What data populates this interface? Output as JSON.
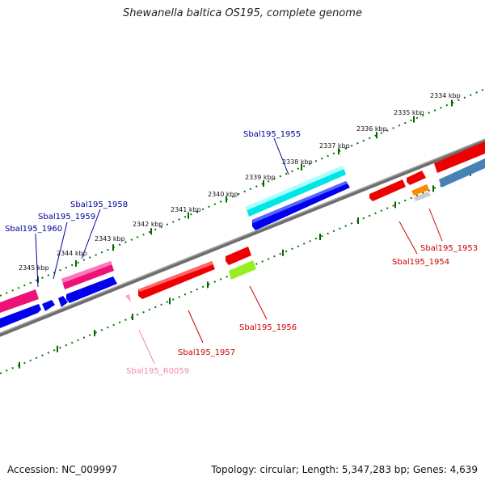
{
  "title": "Shewanella baltica OS195, complete genome",
  "accession": "Accession: NC_009997",
  "summary": "Topology: circular; Length: 5,347,283 bp; Genes: 4,639",
  "kbp_labels": [
    "2334 kbp",
    "2335 kbp",
    "2336 kbp",
    "2337 kbp",
    "2338 kbp",
    "2339 kbp",
    "2340 kbp",
    "2341 kbp",
    "2342 kbp",
    "2343 kbp",
    "2344 kbp",
    "2345 kbp"
  ],
  "genes": [
    {
      "label": "Sbal195_1955",
      "color": "#000099"
    },
    {
      "label": "Sbal195_1958",
      "color": "#000099"
    },
    {
      "label": "Sbal195_1959",
      "color": "#000099"
    },
    {
      "label": "Sbal195_1960",
      "color": "#000099"
    },
    {
      "label": "Sbal195_1953",
      "color": "#cc0000"
    },
    {
      "label": "Sbal195_1954",
      "color": "#cc0000"
    },
    {
      "label": "Sbal195_1956",
      "color": "#cc0000"
    },
    {
      "label": "Sbal195_1957",
      "color": "#cc0000"
    },
    {
      "label": "Sbal195_R0059",
      "color": "#ee88bb"
    }
  ],
  "colors": {
    "backbone": "#888888",
    "ticks": "#006600",
    "forward_blue": "#0000ee",
    "forward_cyan": "#00e5e5",
    "forward_magenta": "#ee1177",
    "reverse_red": "#ee0000",
    "steel_blue": "#4682b4",
    "lime": "#99ee22",
    "orange": "#ff8800",
    "pink_rna": "#ff99cc"
  }
}
